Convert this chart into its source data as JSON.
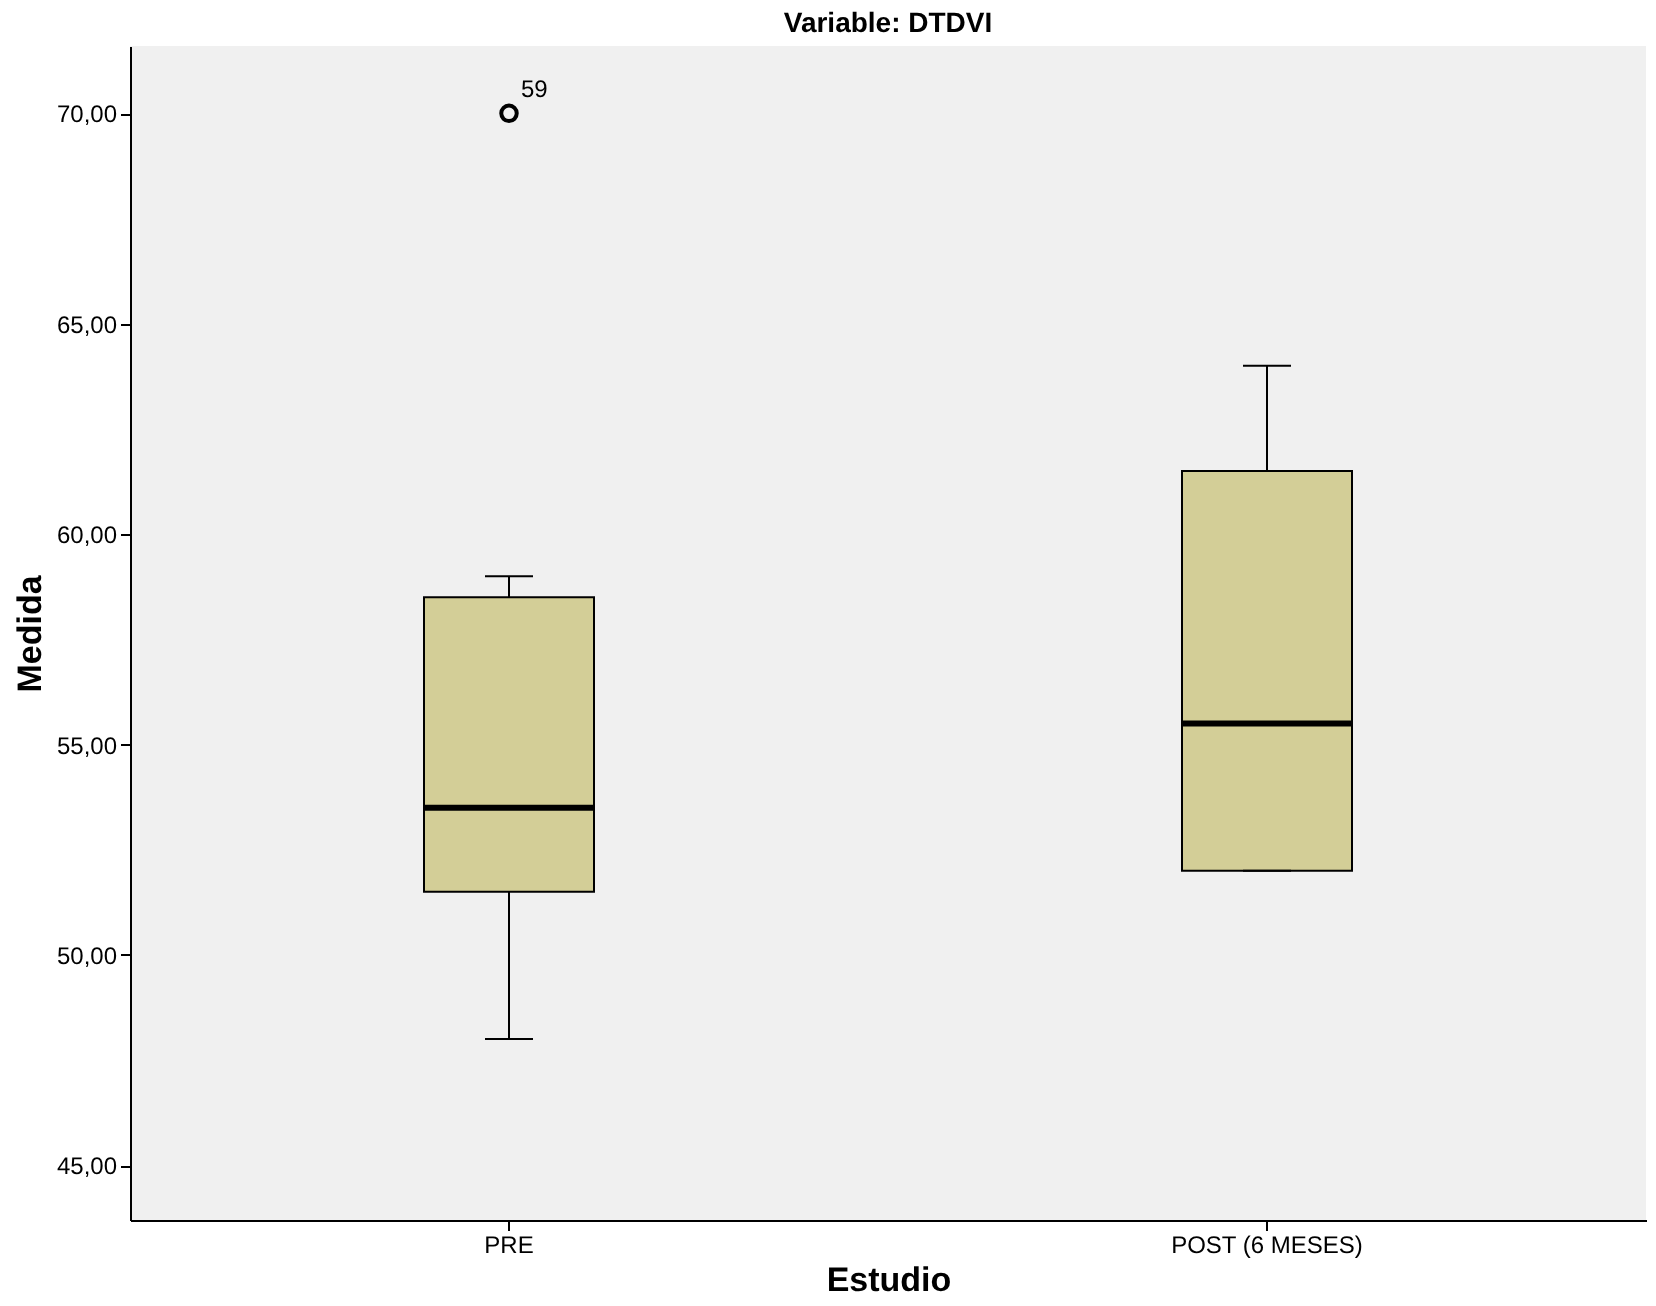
{
  "chart_data": {
    "type": "box",
    "title": "Variable: DTDVI",
    "xlabel": "Estudio",
    "ylabel": "Medida",
    "categories": [
      "PRE",
      "POST (6 MESES)"
    ],
    "boxes": [
      {
        "low": 48,
        "q1": 51.5,
        "median": 53.5,
        "q3": 58.5,
        "high": 59,
        "outliers": [
          70
        ]
      },
      {
        "low": 52,
        "q1": 52,
        "median": 55.5,
        "q3": 61.5,
        "high": 64
      }
    ],
    "color": "#d3ce97",
    "ylim": [
      43.7,
      71.6
    ],
    "yticks": [
      {
        "value": 45,
        "label": "45,00"
      },
      {
        "value": 50,
        "label": "50,00"
      },
      {
        "value": 55,
        "label": "55,00"
      },
      {
        "value": 60,
        "label": "60,00"
      },
      {
        "value": 65,
        "label": "65,00"
      },
      {
        "value": 70,
        "label": "70,00"
      }
    ],
    "annotations": [
      "59"
    ],
    "grid": false
  }
}
